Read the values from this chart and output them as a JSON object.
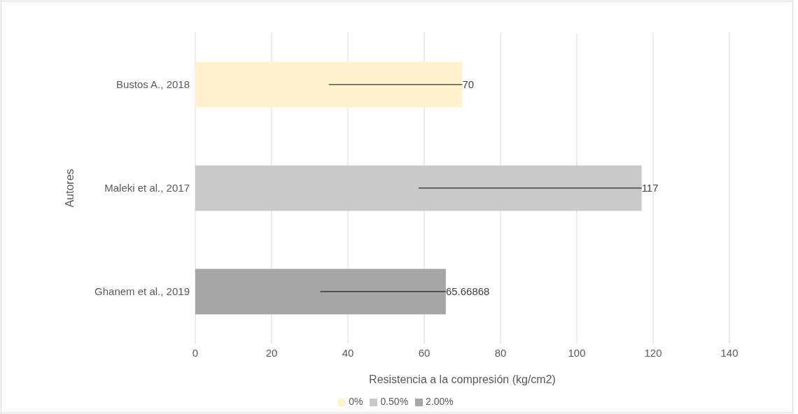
{
  "chart_data": {
    "type": "bar",
    "orientation": "horizontal",
    "stacked": true,
    "xlabel": "Resistencia a la compresión (kg/cm2)",
    "ylabel": "Autores",
    "categories": [
      "Bustos A., 2018",
      "Maleki et al., 2017",
      "Ghanem et al., 2019"
    ],
    "series": [
      {
        "name": "0%",
        "color": "#fff2cc",
        "values": [
          70,
          null,
          null
        ],
        "errors": [
          [
            35,
            70
          ],
          null,
          null
        ]
      },
      {
        "name": "0.50%",
        "color": "#c9c9c9",
        "values": [
          null,
          117,
          null
        ],
        "errors": [
          null,
          [
            58.5,
            117
          ],
          null
        ]
      },
      {
        "name": "2.00%",
        "color": "#a5a5a5",
        "values": [
          null,
          null,
          65.66868
        ],
        "errors": [
          null,
          null,
          [
            32.8,
            65.66868
          ]
        ]
      }
    ],
    "xlim": [
      0,
      140
    ],
    "xticks": [
      0,
      20,
      40,
      60,
      80,
      100,
      120,
      140
    ],
    "grid": "x",
    "legend": "bottom",
    "data_labels": true
  }
}
